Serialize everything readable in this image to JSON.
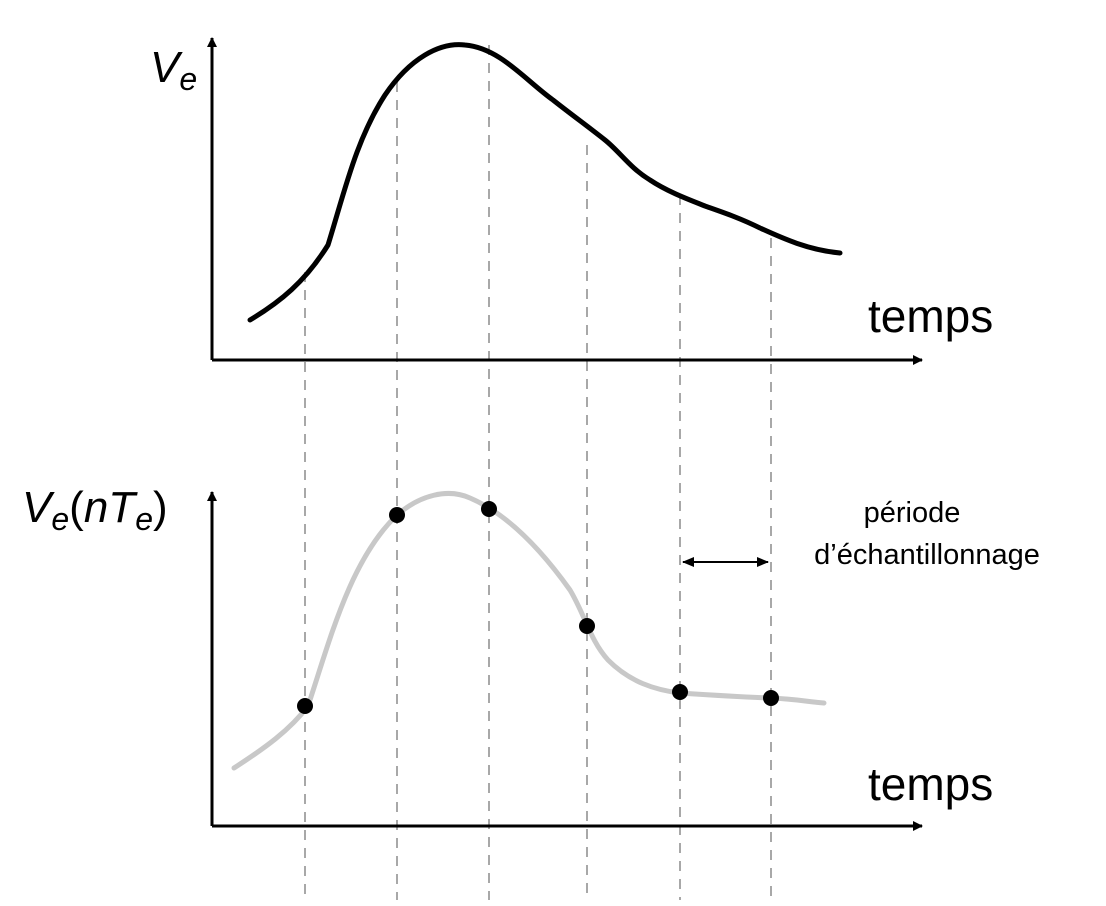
{
  "top_plot": {
    "y_label_main": "V",
    "y_label_sub": "e",
    "x_label": "temps"
  },
  "bottom_plot": {
    "y_label_v": "V",
    "y_label_sub1": "e",
    "y_label_open": "(",
    "y_label_n": "n",
    "y_label_t": "T",
    "y_label_sub2": "e",
    "y_label_close": ")",
    "x_label": "temps"
  },
  "annotation": {
    "line1": "période",
    "line2": "d’échantillonnage"
  },
  "colors": {
    "axis": "#000000",
    "signal": "#000000",
    "reconstructed": "#c8c8c8",
    "guides": "#a0a0a0",
    "samples": "#000000"
  }
}
